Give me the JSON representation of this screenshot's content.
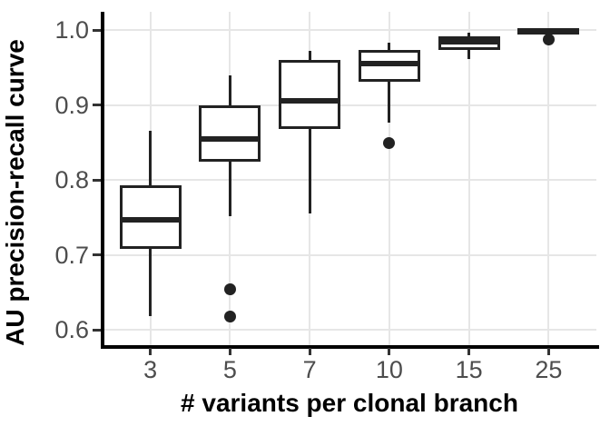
{
  "chart_data": {
    "type": "boxplot",
    "title": "",
    "xlabel": "# variants per clonal branch",
    "ylabel": "AU precision-recall curve",
    "categories": [
      "3",
      "5",
      "7",
      "10",
      "15",
      "25"
    ],
    "y_ticks": [
      0.6,
      0.7,
      0.8,
      0.9,
      1.0
    ],
    "y_tick_labels": [
      "0.6",
      "0.7",
      "0.8",
      "0.9",
      "1.0"
    ],
    "ylim": [
      0.577,
      1.025
    ],
    "grid": true,
    "legend": false,
    "series": [
      {
        "category": "3",
        "whisker_low": 0.618,
        "q1": 0.71,
        "median": 0.747,
        "q3": 0.791,
        "whisker_high": 0.866,
        "outliers": []
      },
      {
        "category": "5",
        "whisker_low": 0.751,
        "q1": 0.826,
        "median": 0.854,
        "q3": 0.897,
        "whisker_high": 0.939,
        "outliers": [
          0.654,
          0.617
        ]
      },
      {
        "category": "7",
        "whisker_low": 0.755,
        "q1": 0.87,
        "median": 0.906,
        "q3": 0.958,
        "whisker_high": 0.972,
        "outliers": []
      },
      {
        "category": "10",
        "whisker_low": 0.876,
        "q1": 0.933,
        "median": 0.955,
        "q3": 0.971,
        "whisker_high": 0.983,
        "outliers": [
          0.849
        ]
      },
      {
        "category": "15",
        "whisker_low": 0.961,
        "q1": 0.975,
        "median": 0.984,
        "q3": 0.99,
        "whisker_high": 0.996,
        "outliers": []
      },
      {
        "category": "25",
        "whisker_low": 0.995,
        "q1": 0.996,
        "median": 0.999,
        "q3": 1.0,
        "whisker_high": 1.0,
        "outliers": [
          0.987
        ]
      }
    ],
    "style": {
      "box_fill": "#ffffff",
      "box_border": "#222222",
      "median_color": "#222222",
      "outlier_color": "#222222",
      "whisker_color": "#222222",
      "gridline_color": "#e6e6e6",
      "axis_line_color": "#000000",
      "tick_mark_color": "#333333",
      "tick_label_color": "#4d4d4d",
      "axis_title_color": "#000000",
      "background": "#ffffff"
    }
  }
}
